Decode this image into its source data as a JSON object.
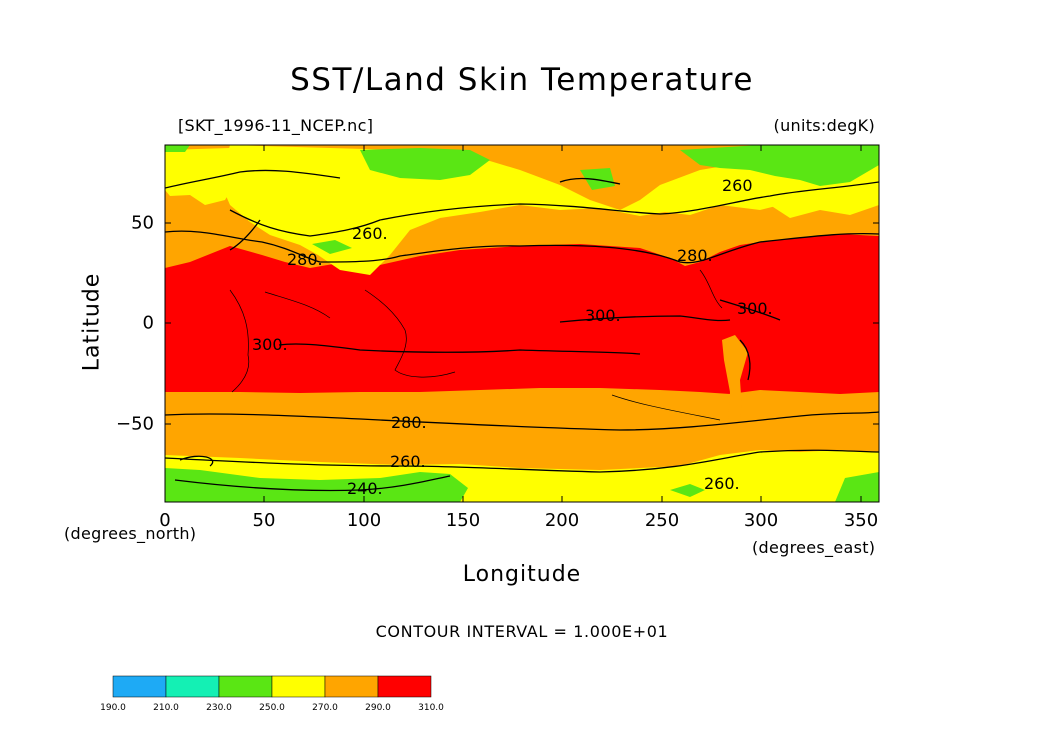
{
  "title": "SST/Land Skin Temperature",
  "file_label": "[SKT_1996-11_NCEP.nc]",
  "units_label": "(units:degK)",
  "x_axis": {
    "label": "Longitude",
    "units": "(degrees_east)",
    "ticks": [
      "0",
      "50",
      "100",
      "150",
      "200",
      "250",
      "300",
      "350"
    ]
  },
  "y_axis": {
    "label": "Latitude",
    "units": "(degrees_north)",
    "ticks": [
      "50",
      "0",
      "−50"
    ]
  },
  "contour_interval": "CONTOUR INTERVAL = 1.000E+01",
  "contour_labels": [
    "260.",
    "260",
    "280.",
    "280.",
    "300.",
    "300.",
    "300.",
    "280.",
    "260.",
    "260.",
    "240."
  ],
  "colorbar": {
    "labels": [
      "190.0",
      "210.0",
      "230.0",
      "250.0",
      "270.0",
      "290.0",
      "310.0"
    ],
    "colors": [
      "#1eaaf5",
      "#14f0b4",
      "#5ae614",
      "#ffff00",
      "#ffa500",
      "#ff0000"
    ]
  },
  "colors": {
    "green": "#5ae614",
    "yellow": "#ffff00",
    "orange": "#ffa500",
    "red": "#ff0000"
  }
}
